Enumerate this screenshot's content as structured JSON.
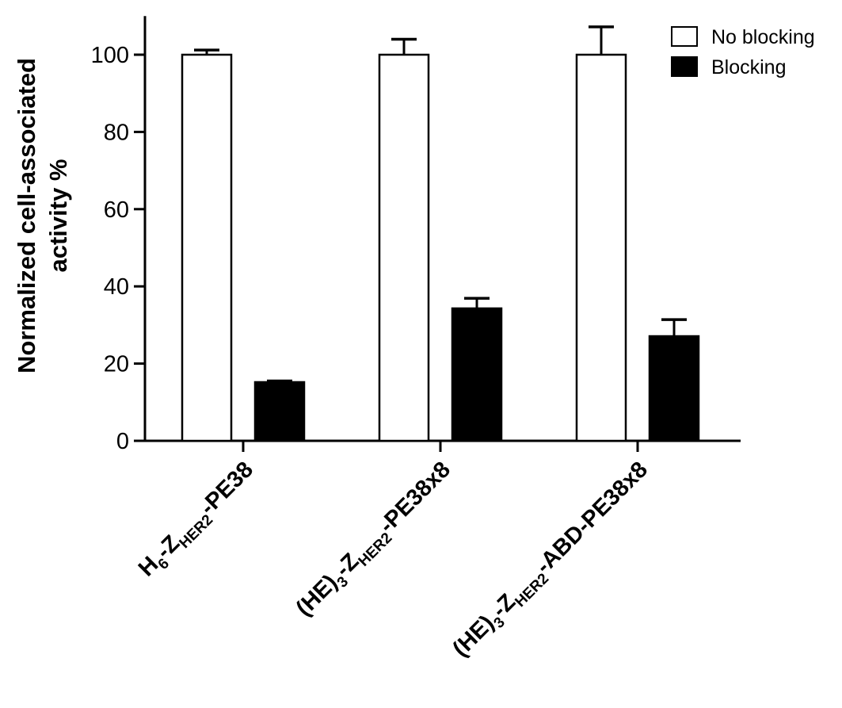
{
  "chart_data": {
    "type": "bar",
    "title": "",
    "ylabel_lines": [
      "Normalized cell-associated",
      "activity %"
    ],
    "ylim": [
      0,
      110
    ],
    "yticks": [
      0,
      20,
      40,
      60,
      80,
      100
    ],
    "ytick_labels": [
      "0",
      "20",
      "40",
      "60",
      "80",
      "100"
    ],
    "legend_position": "top-right",
    "categories": [
      {
        "parts": [
          [
            "H",
            ""
          ],
          [
            "6",
            "sub"
          ],
          [
            "-Z",
            ""
          ],
          [
            "HER2",
            "sub"
          ],
          [
            "-PE38",
            ""
          ]
        ]
      },
      {
        "parts": [
          [
            "(HE)",
            ""
          ],
          [
            "3",
            "sub"
          ],
          [
            "-Z",
            ""
          ],
          [
            "HER2",
            "sub"
          ],
          [
            "-PE38x8",
            ""
          ]
        ]
      },
      {
        "parts": [
          [
            "(HE)",
            ""
          ],
          [
            "3",
            "sub"
          ],
          [
            "-Z",
            ""
          ],
          [
            "HER2",
            "sub"
          ],
          [
            "-ABD-PE38x8",
            ""
          ]
        ]
      }
    ],
    "series": [
      {
        "name": "No blocking",
        "fill": "#ffffff",
        "values": [
          100,
          100,
          100
        ],
        "errors": [
          1.2,
          4.0,
          7.2
        ]
      },
      {
        "name": "Blocking",
        "fill": "#000000",
        "values": [
          15.2,
          34.3,
          27.1
        ],
        "errors": [
          0.3,
          2.6,
          4.3
        ]
      }
    ]
  }
}
